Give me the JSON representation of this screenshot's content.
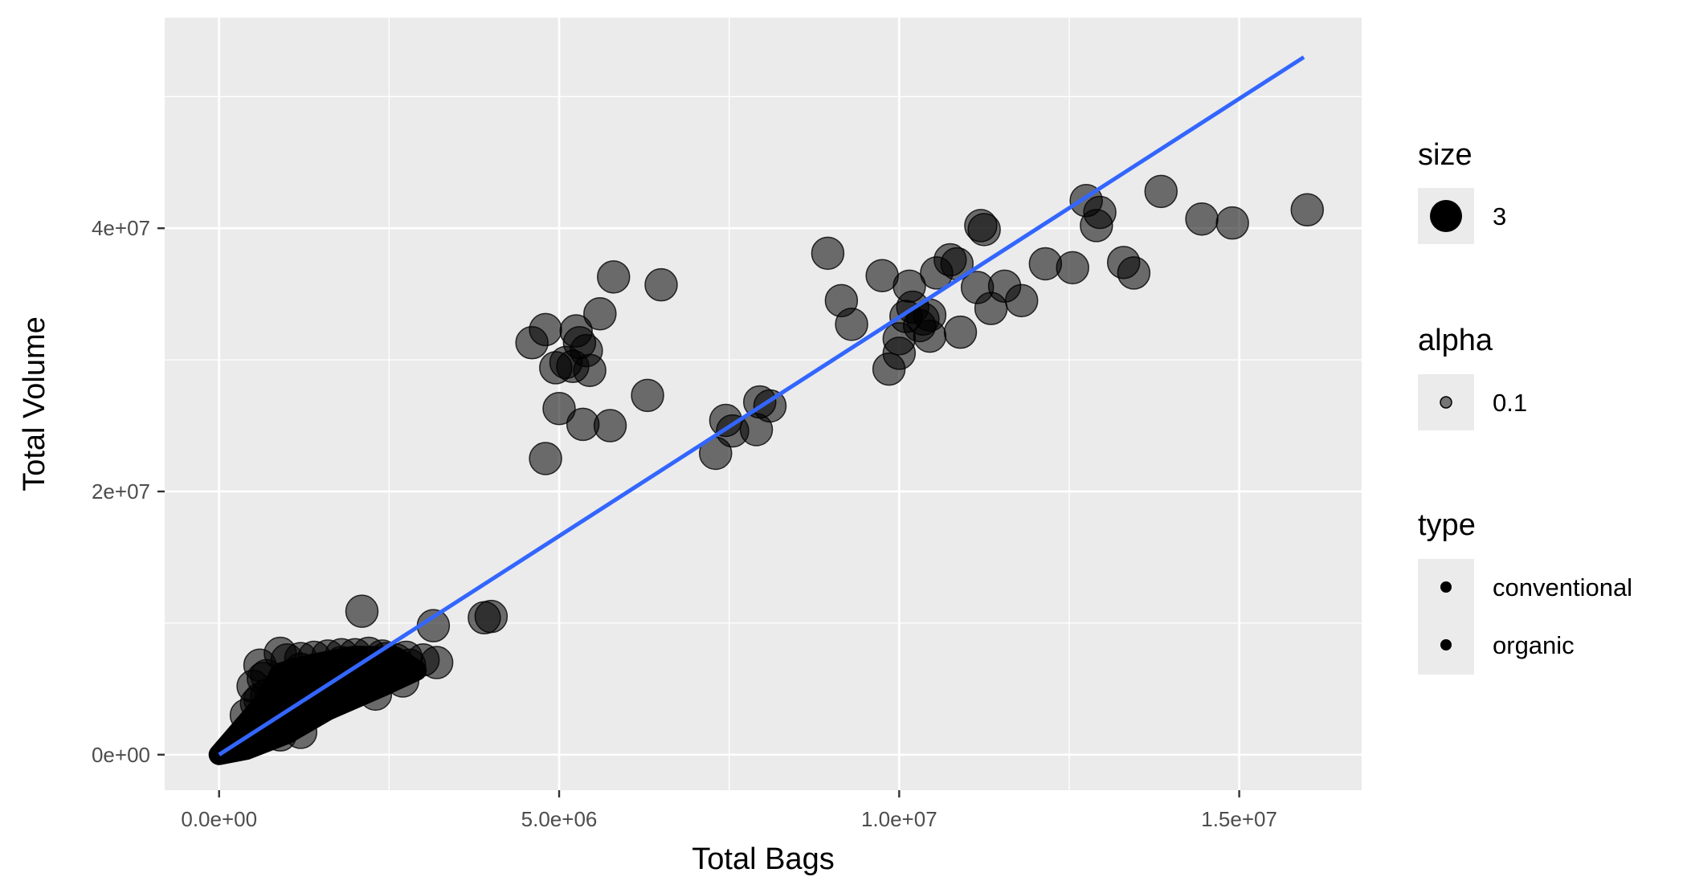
{
  "chart_data": {
    "type": "scatter",
    "title": "",
    "xlabel": "Total Bags",
    "ylabel": "Total Volume",
    "xlim": [
      -800000,
      16800000
    ],
    "ylim": [
      -2700000,
      56000000
    ],
    "x_ticks": [
      {
        "value": 0,
        "label": "0.0e+00"
      },
      {
        "value": 5000000,
        "label": "5.0e+06"
      },
      {
        "value": 10000000,
        "label": "1.0e+07"
      },
      {
        "value": 15000000,
        "label": "1.5e+07"
      }
    ],
    "y_ticks": [
      {
        "value": 0,
        "label": "0e+00"
      },
      {
        "value": 20000000,
        "label": "2e+07"
      },
      {
        "value": 40000000,
        "label": "4e+07"
      }
    ],
    "grid": true,
    "colors": {
      "panel": "#ebebeb",
      "grid": "#ffffff",
      "point": "#000000",
      "fit_line": "#3366ff"
    },
    "point_alpha": 0.55,
    "fit_line": {
      "x": [
        0,
        15950000
      ],
      "y": [
        0,
        53000000
      ]
    },
    "points": [
      [
        4600000,
        31300000
      ],
      [
        4800000,
        32300000
      ],
      [
        4800000,
        22500000
      ],
      [
        4950000,
        29400000
      ],
      [
        5000000,
        26300000
      ],
      [
        5100000,
        29800000
      ],
      [
        5200000,
        29500000
      ],
      [
        5250000,
        32200000
      ],
      [
        5300000,
        31300000
      ],
      [
        5350000,
        25100000
      ],
      [
        5400000,
        30700000
      ],
      [
        5450000,
        29200000
      ],
      [
        5600000,
        33500000
      ],
      [
        5800000,
        36300000
      ],
      [
        5750000,
        25000000
      ],
      [
        6300000,
        27300000
      ],
      [
        6500000,
        35700000
      ],
      [
        7300000,
        22900000
      ],
      [
        7450000,
        25400000
      ],
      [
        7550000,
        24600000
      ],
      [
        7900000,
        24700000
      ],
      [
        7950000,
        26800000
      ],
      [
        8100000,
        26500000
      ],
      [
        8950000,
        38100000
      ],
      [
        9150000,
        34500000
      ],
      [
        9300000,
        32700000
      ],
      [
        9750000,
        36400000
      ],
      [
        9850000,
        29300000
      ],
      [
        10000000,
        31600000
      ],
      [
        10000000,
        30500000
      ],
      [
        10150000,
        35600000
      ],
      [
        10100000,
        33300000
      ],
      [
        10200000,
        34000000
      ],
      [
        10300000,
        32600000
      ],
      [
        10350000,
        33100000
      ],
      [
        10450000,
        31800000
      ],
      [
        10450000,
        33400000
      ],
      [
        10550000,
        36600000
      ],
      [
        10750000,
        37600000
      ],
      [
        10850000,
        37300000
      ],
      [
        10900000,
        32100000
      ],
      [
        11150000,
        35500000
      ],
      [
        11200000,
        40200000
      ],
      [
        11250000,
        39900000
      ],
      [
        11350000,
        33900000
      ],
      [
        11550000,
        35600000
      ],
      [
        11800000,
        34500000
      ],
      [
        12150000,
        37300000
      ],
      [
        12550000,
        37000000
      ],
      [
        12750000,
        42100000
      ],
      [
        12950000,
        41200000
      ],
      [
        12900000,
        40200000
      ],
      [
        13300000,
        37400000
      ],
      [
        13450000,
        36600000
      ],
      [
        13850000,
        42800000
      ],
      [
        14450000,
        40700000
      ],
      [
        14900000,
        40400000
      ],
      [
        16000000,
        41400000
      ],
      [
        2100000,
        10900000
      ],
      [
        3150000,
        9800000
      ],
      [
        3900000,
        10400000
      ],
      [
        4000000,
        10500000
      ],
      [
        3200000,
        7000000
      ],
      [
        2700000,
        5600000
      ],
      [
        2300000,
        4600000
      ],
      [
        900000,
        7700000
      ],
      [
        600000,
        6800000
      ],
      [
        700000,
        6000000
      ],
      [
        1000000,
        7200000
      ],
      [
        1200000,
        7300000
      ],
      [
        1400000,
        7400000
      ],
      [
        1600000,
        7500000
      ],
      [
        1800000,
        7600000
      ],
      [
        2000000,
        7600000
      ],
      [
        2200000,
        7700000
      ],
      [
        2400000,
        7500000
      ],
      [
        2600000,
        7200000
      ],
      [
        2800000,
        6800000
      ],
      [
        1500000,
        4000000
      ],
      [
        1100000,
        3000000
      ],
      [
        800000,
        2100000
      ],
      [
        1300000,
        3200000
      ],
      [
        1700000,
        4700000
      ],
      [
        2000000,
        5500000
      ],
      [
        2500000,
        6600000
      ],
      [
        900000,
        1500000
      ],
      [
        1200000,
        1700000
      ],
      [
        500000,
        5200000
      ],
      [
        550000,
        3900000
      ],
      [
        700000,
        4500000
      ],
      [
        1000000,
        5500000
      ],
      [
        1500000,
        6000000
      ],
      [
        1900000,
        6500000
      ],
      [
        2300000,
        7000000
      ],
      [
        650000,
        5800000
      ],
      [
        1200000,
        6500000
      ],
      [
        1800000,
        7000000
      ],
      [
        3000000,
        7200000
      ],
      [
        600000,
        4200000
      ],
      [
        400000,
        3000000
      ],
      [
        850000,
        4800000
      ],
      [
        1400000,
        5200000
      ],
      [
        1650000,
        6100000
      ],
      [
        2100000,
        6200000
      ],
      [
        2450000,
        7300000
      ],
      [
        2750000,
        7400000
      ],
      [
        1100000,
        6100000
      ],
      [
        750000,
        4000000
      ]
    ],
    "legend": [
      {
        "title": "size",
        "items": [
          {
            "label": "3",
            "marker": "large"
          }
        ]
      },
      {
        "title": "alpha",
        "items": [
          {
            "label": "0.1",
            "marker": "small-faded"
          }
        ]
      },
      {
        "title": "type",
        "items": [
          {
            "label": "conventional",
            "marker": "small"
          },
          {
            "label": "organic",
            "marker": "small"
          }
        ]
      }
    ],
    "legend_position": "right"
  }
}
